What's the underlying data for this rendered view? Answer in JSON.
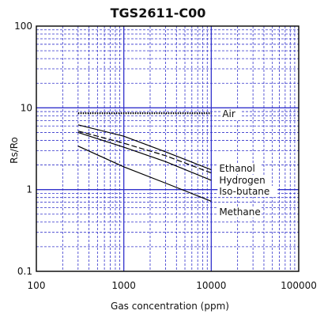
{
  "chart_data": {
    "type": "line",
    "title": "TGS2611-C00",
    "xlabel": "Gas concentration (ppm)",
    "ylabel": "Rs/Ro",
    "x_scale": "log",
    "y_scale": "log",
    "xlim": [
      100,
      100000
    ],
    "ylim": [
      0.1,
      100
    ],
    "x_ticks": [
      "100",
      "1000",
      "10000",
      "100000"
    ],
    "y_ticks": [
      "0.1",
      "1",
      "10",
      "100"
    ],
    "grid": true,
    "grid_color": "#3333cc",
    "line_color": "#000000",
    "series": [
      {
        "name": "Air",
        "style": "dotted",
        "x": [
          300,
          10000
        ],
        "y": [
          8.6,
          8.6
        ]
      },
      {
        "name": "Ethanol",
        "style": "solid",
        "x": [
          300,
          1000,
          3000,
          10000
        ],
        "y": [
          6.2,
          4.5,
          2.9,
          1.75
        ]
      },
      {
        "name": "Hydrogen",
        "style": "dashed",
        "x": [
          300,
          1000,
          3000,
          10000
        ],
        "y": [
          5.2,
          3.7,
          2.6,
          1.6
        ]
      },
      {
        "name": "Iso-butane",
        "style": "solid",
        "x": [
          300,
          1000,
          3000,
          10000
        ],
        "y": [
          5.0,
          3.3,
          2.2,
          1.3
        ]
      },
      {
        "name": "Methane",
        "style": "solid",
        "x": [
          300,
          1000,
          3000,
          10000
        ],
        "y": [
          3.4,
          1.9,
          1.2,
          0.72
        ]
      }
    ]
  }
}
